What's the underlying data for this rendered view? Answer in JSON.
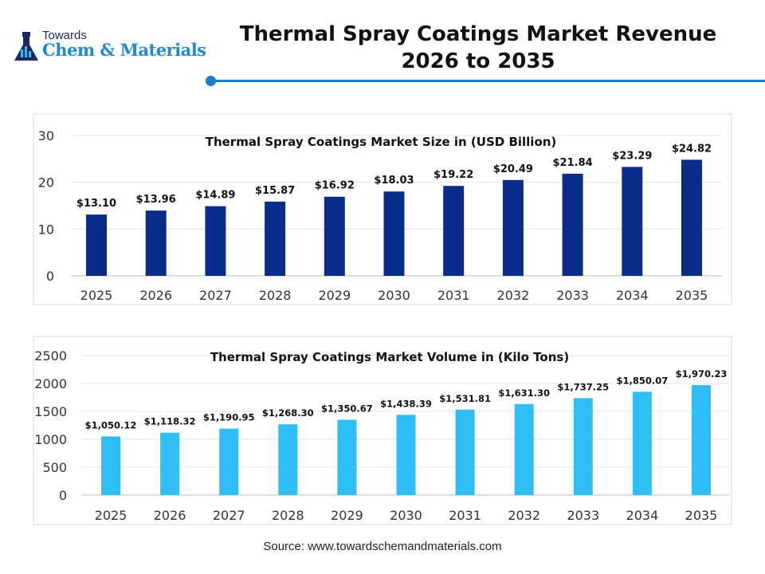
{
  "logo": {
    "line1": "Towards",
    "line2": "Chem & Materials"
  },
  "title_line1": "Thermal Spray Coatings Market Revenue",
  "title_line2": "2026 to 2035",
  "source": "Source: www.towardschemandmaterials.com",
  "colors": {
    "size_bar": "#0a2d8c",
    "volume_bar": "#2ebdf5",
    "accent": "#1e7dc8"
  },
  "chart_data": [
    {
      "type": "bar",
      "title": "Thermal Spray Coatings Market Size in (USD Billion)",
      "categories": [
        "2025",
        "2026",
        "2027",
        "2028",
        "2029",
        "2030",
        "2031",
        "2032",
        "2033",
        "2034",
        "2035"
      ],
      "values": [
        13.1,
        13.96,
        14.89,
        15.87,
        16.92,
        18.03,
        19.22,
        20.49,
        21.84,
        23.29,
        24.82
      ],
      "labels": [
        "$13.10",
        "$13.96",
        "$14.89",
        "$15.87",
        "$16.92",
        "$18.03",
        "$19.22",
        "$20.49",
        "$21.84",
        "$23.29",
        "$24.82"
      ],
      "ylim": [
        0,
        30
      ],
      "yticks": [
        0,
        10,
        20,
        30
      ],
      "grid": true
    },
    {
      "type": "bar",
      "title": "Thermal Spray Coatings Market Volume in (Kilo Tons)",
      "categories": [
        "2025",
        "2026",
        "2027",
        "2028",
        "2029",
        "2030",
        "2031",
        "2032",
        "2033",
        "2034",
        "2035"
      ],
      "values": [
        1050.12,
        1118.32,
        1190.95,
        1268.3,
        1350.67,
        1438.39,
        1531.81,
        1631.3,
        1737.25,
        1850.07,
        1970.23
      ],
      "labels": [
        "$1,050.12",
        "$1,118.32",
        "$1,190.95",
        "$1,268.30",
        "$1,350.67",
        "$1,438.39",
        "$1,531.81",
        "$1,631.30",
        "$1,737.25",
        "$1,850.07",
        "$1,970.23"
      ],
      "ylim": [
        0,
        2500
      ],
      "yticks": [
        0,
        500,
        1000,
        1500,
        2000,
        2500
      ],
      "grid": true
    }
  ]
}
